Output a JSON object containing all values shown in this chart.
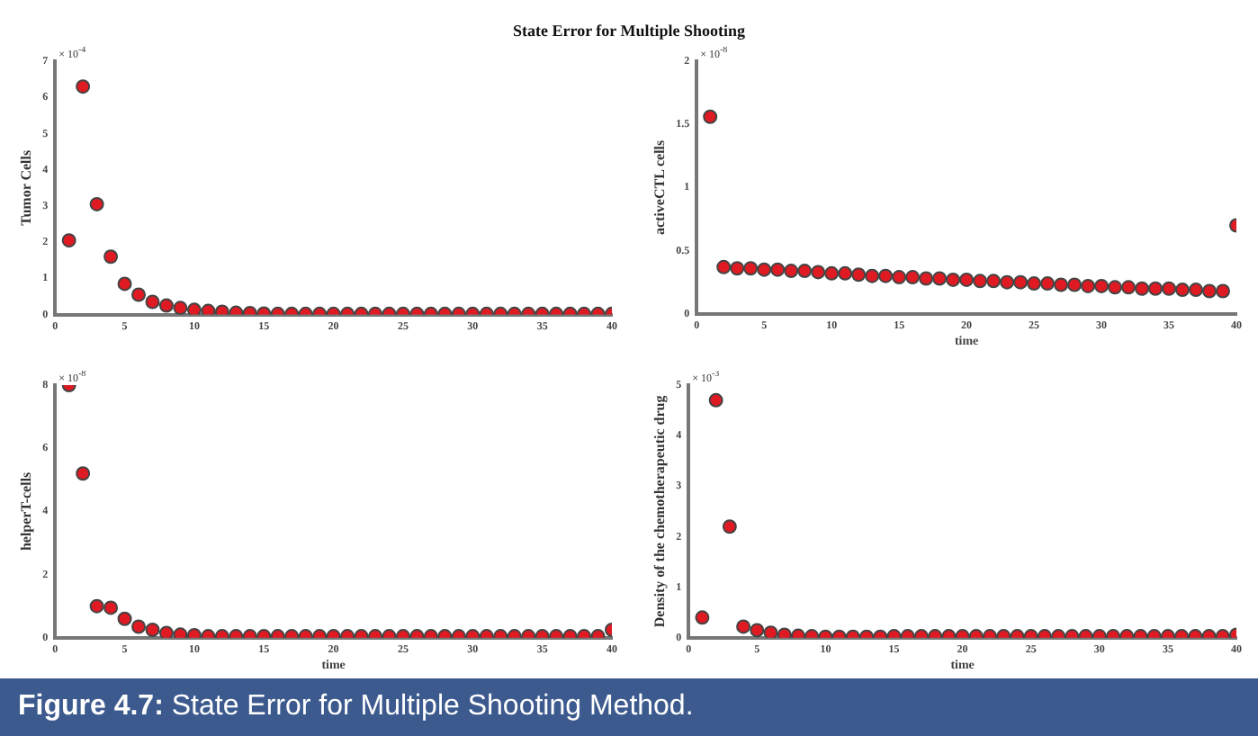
{
  "chart_data": [
    {
      "type": "scatter",
      "title": "State Error for Multiple Shooting",
      "ylabel": "Tumor Cells",
      "annotations": [
        "× 10$^{-4}$"
      ],
      "marker": "circle",
      "grid": false,
      "legend": false,
      "xlim": [
        0,
        40
      ],
      "xticks": [
        0,
        5,
        10,
        15,
        20,
        25,
        30,
        35,
        40
      ],
      "ylim": [
        0,
        7
      ],
      "yticks": [
        0,
        1,
        2,
        3,
        4,
        5,
        6,
        7
      ],
      "x": [
        1,
        2,
        3,
        4,
        5,
        6,
        7,
        8,
        9,
        10,
        11,
        12,
        13,
        14,
        15,
        16,
        17,
        18,
        19,
        20,
        21,
        22,
        23,
        24,
        25,
        26,
        27,
        28,
        29,
        30,
        31,
        32,
        33,
        34,
        35,
        36,
        37,
        38,
        39,
        40
      ],
      "series": [
        {
          "color": "#e01a22",
          "values": [
            2.05,
            6.3,
            3.05,
            1.6,
            0.85,
            0.55,
            0.35,
            0.25,
            0.18,
            0.13,
            0.1,
            0.08,
            0.05,
            0.04,
            0.03,
            0.02,
            0.02,
            0.02,
            0.02,
            0.02,
            0.02,
            0.02,
            0.02,
            0.02,
            0.02,
            0.02,
            0.02,
            0.02,
            0.02,
            0.02,
            0.02,
            0.02,
            0.02,
            0.02,
            0.02,
            0.02,
            0.02,
            0.02,
            0.02,
            0.02
          ]
        }
      ]
    },
    {
      "type": "scatter",
      "xlabel": "time",
      "ylabel": "activeCTL cells",
      "annotations": [
        "× 10$^{-8}$"
      ],
      "marker": "circle",
      "grid": false,
      "legend": false,
      "xlim": [
        0,
        40
      ],
      "xticks": [
        0,
        5,
        10,
        15,
        20,
        25,
        30,
        35,
        40
      ],
      "ylim": [
        0,
        2
      ],
      "yticks": [
        0,
        0.5,
        1,
        1.5,
        2
      ],
      "x": [
        1,
        2,
        3,
        4,
        5,
        6,
        7,
        8,
        9,
        10,
        11,
        12,
        13,
        14,
        15,
        16,
        17,
        18,
        19,
        20,
        21,
        22,
        23,
        24,
        25,
        26,
        27,
        28,
        29,
        30,
        31,
        32,
        33,
        34,
        35,
        36,
        37,
        38,
        39,
        40
      ],
      "series": [
        {
          "color": "#e01a22",
          "values": [
            1.56,
            0.37,
            0.36,
            0.36,
            0.35,
            0.35,
            0.34,
            0.34,
            0.33,
            0.32,
            0.32,
            0.31,
            0.3,
            0.3,
            0.29,
            0.29,
            0.28,
            0.28,
            0.27,
            0.27,
            0.26,
            0.26,
            0.25,
            0.25,
            0.24,
            0.24,
            0.23,
            0.23,
            0.22,
            0.22,
            0.21,
            0.21,
            0.2,
            0.2,
            0.2,
            0.19,
            0.19,
            0.18,
            0.18,
            0.7
          ]
        }
      ]
    },
    {
      "type": "scatter",
      "xlabel": "time",
      "ylabel": "helperT-cells",
      "annotations": [
        "× 10$^{-8}$"
      ],
      "marker": "circle",
      "grid": false,
      "legend": false,
      "xlim": [
        0,
        40
      ],
      "xticks": [
        0,
        5,
        10,
        15,
        20,
        25,
        30,
        35,
        40
      ],
      "ylim": [
        0,
        8
      ],
      "yticks": [
        0,
        2,
        4,
        6,
        8
      ],
      "x": [
        1,
        2,
        3,
        4,
        5,
        6,
        7,
        8,
        9,
        10,
        11,
        12,
        13,
        14,
        15,
        16,
        17,
        18,
        19,
        20,
        21,
        22,
        23,
        24,
        25,
        26,
        27,
        28,
        29,
        30,
        31,
        32,
        33,
        34,
        35,
        36,
        37,
        38,
        39,
        40
      ],
      "series": [
        {
          "color": "#e01a22",
          "values": [
            8,
            5.2,
            1.0,
            0.95,
            0.6,
            0.35,
            0.25,
            0.15,
            0.1,
            0.08,
            0.05,
            0.05,
            0.05,
            0.05,
            0.05,
            0.05,
            0.05,
            0.05,
            0.05,
            0.05,
            0.05,
            0.05,
            0.05,
            0.05,
            0.05,
            0.05,
            0.05,
            0.05,
            0.05,
            0.05,
            0.05,
            0.05,
            0.05,
            0.05,
            0.05,
            0.05,
            0.05,
            0.05,
            0.05,
            0.25
          ]
        }
      ]
    },
    {
      "type": "scatter",
      "xlabel": "time",
      "ylabel": "Density of the chemotherapeutic drug",
      "annotations": [
        "× 10$^{-3}$",
        "Figure 4.7: State Error for Multiple Shooting Method."
      ],
      "marker": "circle",
      "grid": false,
      "legend": false,
      "xlim": [
        0,
        40
      ],
      "xticks": [
        0,
        5,
        10,
        15,
        20,
        25,
        30,
        35,
        40
      ],
      "ylim": [
        0,
        5
      ],
      "yticks": [
        0,
        1,
        2,
        3,
        4,
        5
      ],
      "x": [
        1,
        2,
        3,
        4,
        5,
        6,
        7,
        8,
        9,
        10,
        11,
        12,
        13,
        14,
        15,
        16,
        17,
        18,
        19,
        20,
        21,
        22,
        23,
        24,
        25,
        26,
        27,
        28,
        29,
        30,
        31,
        32,
        33,
        34,
        35,
        36,
        37,
        38,
        39,
        40
      ],
      "series": [
        {
          "color": "#e01a22",
          "values": [
            0.4,
            4.7,
            2.2,
            0.22,
            0.15,
            0.1,
            0.06,
            0.04,
            0.03,
            0.02,
            0.02,
            0.02,
            0.02,
            0.02,
            0.03,
            0.03,
            0.03,
            0.03,
            0.03,
            0.03,
            0.03,
            0.03,
            0.03,
            0.03,
            0.03,
            0.03,
            0.03,
            0.03,
            0.03,
            0.03,
            0.03,
            0.03,
            0.03,
            0.03,
            0.03,
            0.03,
            0.03,
            0.03,
            0.03,
            0.06
          ]
        }
      ]
    }
  ]
}
